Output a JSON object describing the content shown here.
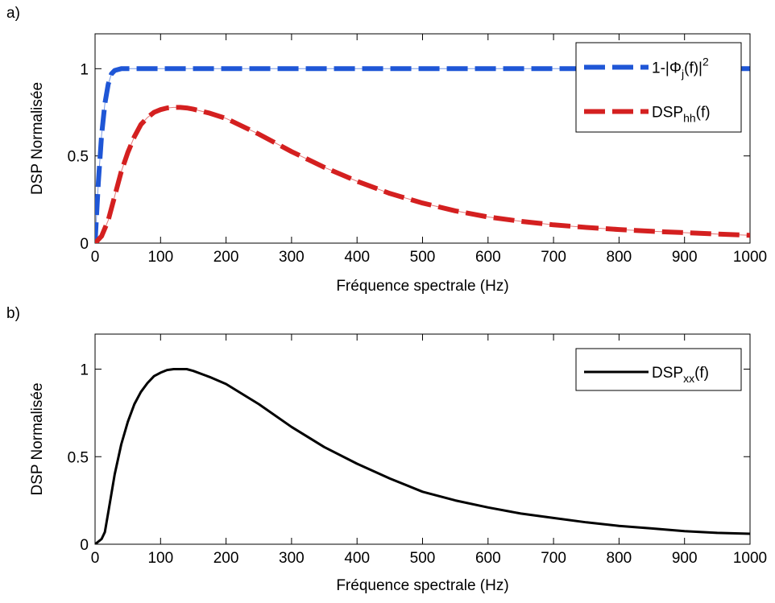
{
  "chart_data": [
    {
      "panel_label": "a)",
      "type": "line",
      "xlabel": "Fréquence spectrale (Hz)",
      "ylabel": "DSP Normalisée",
      "xlim": [
        0,
        1000
      ],
      "ylim": [
        0,
        1.2
      ],
      "x_ticks": [
        "0",
        "100",
        "200",
        "300",
        "400",
        "500",
        "600",
        "700",
        "800",
        "900",
        "1000"
      ],
      "y_ticks": [
        "0",
        "0.5",
        "1"
      ],
      "grid": false,
      "legend_position": "top-right",
      "series": [
        {
          "legend": {
            "base": "1-|Φ",
            "sub": "j",
            "mid": "(f)|",
            "sup": "2",
            "tail": ""
          },
          "color": "#1f56d6",
          "style": "dashed",
          "x": [
            0,
            5,
            10,
            15,
            20,
            25,
            30,
            40,
            50,
            100,
            200,
            400,
            600,
            800,
            1000
          ],
          "y": [
            0,
            0.35,
            0.62,
            0.8,
            0.91,
            0.97,
            0.99,
            1.0,
            1.0,
            1.0,
            1.0,
            1.0,
            1.0,
            1.0,
            1.0
          ]
        },
        {
          "legend": {
            "base": "DSP",
            "sub": "hh",
            "mid": "(f)",
            "sup": "",
            "tail": ""
          },
          "color": "#d42020",
          "style": "dashed",
          "x": [
            0,
            10,
            20,
            30,
            40,
            50,
            60,
            70,
            80,
            90,
            100,
            110,
            120,
            130,
            140,
            150,
            175,
            200,
            250,
            300,
            350,
            400,
            450,
            500,
            550,
            600,
            650,
            700,
            750,
            800,
            850,
            900,
            950,
            1000
          ],
          "y": [
            0,
            0.04,
            0.13,
            0.27,
            0.41,
            0.52,
            0.61,
            0.68,
            0.72,
            0.75,
            0.765,
            0.775,
            0.778,
            0.778,
            0.775,
            0.768,
            0.745,
            0.715,
            0.625,
            0.525,
            0.435,
            0.355,
            0.285,
            0.23,
            0.185,
            0.15,
            0.125,
            0.105,
            0.09,
            0.078,
            0.068,
            0.06,
            0.052,
            0.045
          ]
        }
      ]
    },
    {
      "panel_label": "b)",
      "type": "line",
      "xlabel": "Fréquence spectrale (Hz)",
      "ylabel": "DSP Normalisée",
      "xlim": [
        0,
        1000
      ],
      "ylim": [
        0,
        1.2
      ],
      "x_ticks": [
        "0",
        "100",
        "200",
        "300",
        "400",
        "500",
        "600",
        "700",
        "800",
        "900",
        "1000"
      ],
      "y_ticks": [
        "0",
        "0.5",
        "1"
      ],
      "grid": false,
      "legend_position": "top-right",
      "series": [
        {
          "legend": {
            "base": "DSP",
            "sub": "xx",
            "mid": "(f)",
            "sup": "",
            "tail": ""
          },
          "color": "#000000",
          "style": "solid",
          "x": [
            0,
            10,
            15,
            20,
            30,
            40,
            50,
            60,
            70,
            80,
            90,
            100,
            110,
            120,
            130,
            140,
            150,
            175,
            200,
            250,
            300,
            350,
            400,
            450,
            500,
            550,
            600,
            650,
            700,
            750,
            800,
            850,
            900,
            950,
            1000
          ],
          "y": [
            0,
            0.03,
            0.07,
            0.18,
            0.4,
            0.57,
            0.7,
            0.8,
            0.87,
            0.92,
            0.96,
            0.98,
            0.995,
            1.0,
            1.0,
            1.0,
            0.99,
            0.955,
            0.915,
            0.8,
            0.67,
            0.555,
            0.46,
            0.375,
            0.3,
            0.25,
            0.21,
            0.175,
            0.15,
            0.125,
            0.105,
            0.09,
            0.075,
            0.065,
            0.06
          ]
        }
      ]
    }
  ]
}
